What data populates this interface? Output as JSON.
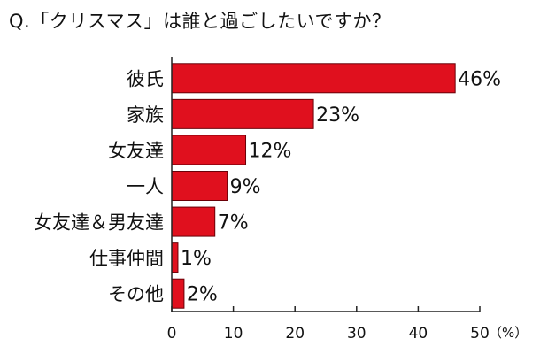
{
  "title": "Q.「クリスマス」は誰と過ごしたいですか？",
  "chart_data": {
    "type": "bar",
    "orientation": "horizontal",
    "categories": [
      "彼氏",
      "家族",
      "女友達",
      "一人",
      "女友達＆男友達",
      "仕事仲間",
      "その他"
    ],
    "values": [
      46,
      23,
      12,
      9,
      7,
      1,
      2
    ],
    "value_labels": [
      "46%",
      "23%",
      "12%",
      "9%",
      "7%",
      "1%",
      "2%"
    ],
    "xticks": [
      0,
      10,
      20,
      30,
      40,
      50
    ],
    "xlim": [
      0,
      50
    ],
    "unit_label": "（%）",
    "bar_color": "#e0101e",
    "bar_edge_color": "#6a0008",
    "axis_color": "#222222",
    "grid": false,
    "legend": "none"
  }
}
